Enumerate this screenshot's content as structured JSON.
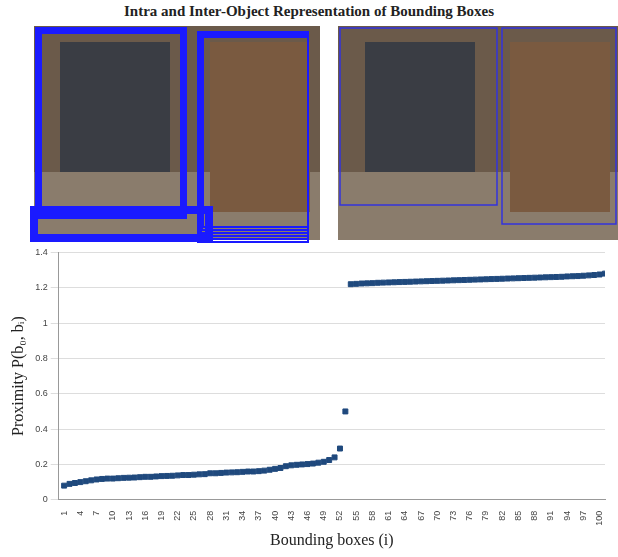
{
  "chart_data": {
    "type": "scatter",
    "title": "Intra and Inter-Object Representation of Bounding Boxes",
    "x_label": "Bounding boxes (i)",
    "y_label": "Proximity P(b₀, bᵢ)",
    "x": [
      1,
      2,
      3,
      4,
      5,
      6,
      7,
      8,
      9,
      10,
      11,
      12,
      13,
      14,
      15,
      16,
      17,
      18,
      19,
      20,
      21,
      22,
      23,
      24,
      25,
      26,
      27,
      28,
      29,
      30,
      31,
      32,
      33,
      34,
      35,
      36,
      37,
      38,
      39,
      40,
      41,
      42,
      43,
      44,
      45,
      46,
      47,
      48,
      49,
      50,
      51,
      52,
      53,
      54,
      55,
      56,
      57,
      58,
      59,
      60,
      61,
      62,
      63,
      64,
      65,
      66,
      67,
      68,
      69,
      70,
      71,
      72,
      73,
      74,
      75,
      76,
      77,
      78,
      79,
      80,
      81,
      82,
      83,
      84,
      85,
      86,
      87,
      88,
      89,
      90,
      91,
      92,
      93,
      94,
      95,
      96,
      97,
      98,
      99,
      100,
      101
    ],
    "values": [
      0.08,
      0.09,
      0.095,
      0.1,
      0.105,
      0.11,
      0.115,
      0.118,
      0.12,
      0.12,
      0.122,
      0.124,
      0.125,
      0.126,
      0.128,
      0.13,
      0.13,
      0.132,
      0.134,
      0.135,
      0.136,
      0.138,
      0.14,
      0.14,
      0.142,
      0.144,
      0.145,
      0.15,
      0.15,
      0.152,
      0.154,
      0.155,
      0.156,
      0.158,
      0.16,
      0.16,
      0.162,
      0.165,
      0.17,
      0.175,
      0.18,
      0.19,
      0.195,
      0.198,
      0.2,
      0.202,
      0.205,
      0.21,
      0.215,
      0.225,
      0.24,
      0.29,
      0.5,
      1.22,
      1.222,
      1.224,
      1.225,
      1.226,
      1.228,
      1.229,
      1.23,
      1.231,
      1.232,
      1.233,
      1.234,
      1.235,
      1.236,
      1.237,
      1.238,
      1.239,
      1.24,
      1.241,
      1.242,
      1.243,
      1.244,
      1.245,
      1.246,
      1.247,
      1.248,
      1.249,
      1.25,
      1.251,
      1.252,
      1.253,
      1.254,
      1.255,
      1.256,
      1.257,
      1.258,
      1.259,
      1.26,
      1.261,
      1.262,
      1.264,
      1.265,
      1.266,
      1.268,
      1.27,
      1.272,
      1.275,
      1.28
    ],
    "color": "#1f497d",
    "marker": "square",
    "xlim": [
      0,
      101
    ],
    "xticks": [
      1,
      4,
      7,
      10,
      13,
      16,
      19,
      22,
      25,
      28,
      31,
      34,
      37,
      40,
      43,
      46,
      49,
      52,
      55,
      58,
      61,
      64,
      67,
      70,
      73,
      76,
      79,
      82,
      85,
      88,
      91,
      94,
      97,
      100
    ],
    "ylim": [
      0,
      1.4
    ],
    "yticks": [
      0,
      0.2,
      0.4,
      0.6,
      0.8,
      1,
      1.2,
      1.4
    ],
    "grid": true
  }
}
